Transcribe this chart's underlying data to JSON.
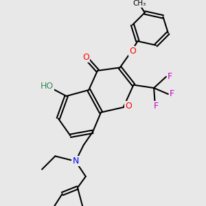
{
  "bg_color": "#e8e8e8",
  "bond_color": "#000000",
  "bond_width": 1.5,
  "atom_colors": {
    "O": "#ff0000",
    "N": "#0000ff",
    "F": "#cc00cc",
    "HO": "#2e8b57"
  },
  "font_size_atom": 9,
  "font_size_small": 7.5
}
